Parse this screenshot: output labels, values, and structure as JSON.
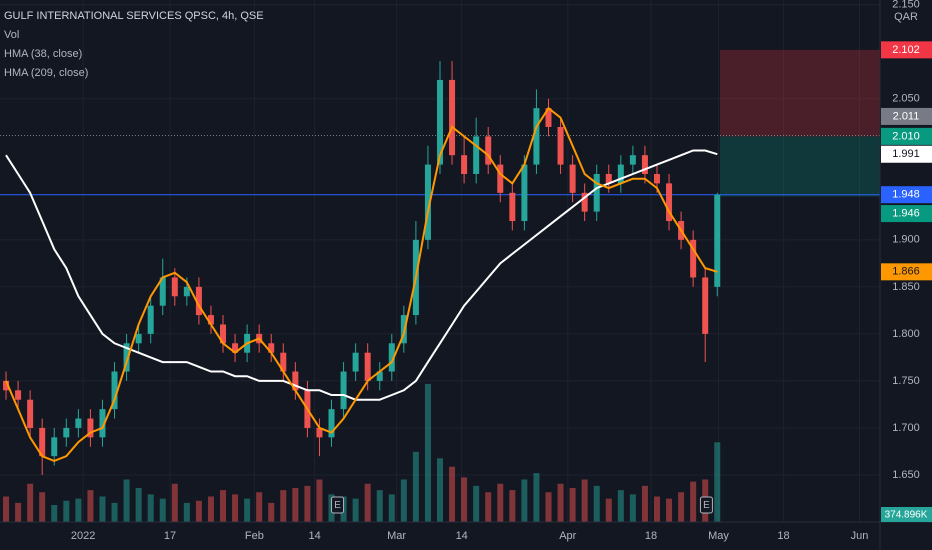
{
  "chart_data": {
    "type": "candlestick",
    "title": "GULF INTERNATIONAL SERVICES QPSC, 4h, QSE",
    "currency": "QAR",
    "grid": true,
    "up_color": "#26a69a",
    "down_color": "#ef5350",
    "xlim": [
      0,
      73
    ],
    "ylim": [
      1.6,
      2.155
    ],
    "vlim": [
      0,
      800
    ],
    "yticks": [
      {
        "value": 2.15,
        "label": "2.150"
      },
      {
        "value": 2.05,
        "label": "2.050"
      },
      {
        "value": 1.9,
        "label": "1.900"
      },
      {
        "value": 1.85,
        "label": "1.850"
      },
      {
        "value": 1.8,
        "label": "1.800"
      },
      {
        "value": 1.75,
        "label": "1.750"
      },
      {
        "value": 1.7,
        "label": "1.700"
      },
      {
        "value": 1.65,
        "label": "1.650"
      }
    ],
    "xticks": [
      {
        "value": 6.9,
        "label": "2022"
      },
      {
        "value": 14.1,
        "label": "17"
      },
      {
        "value": 21.1,
        "label": "Feb"
      },
      {
        "value": 26.1,
        "label": "14"
      },
      {
        "value": 32.9,
        "label": "Mar"
      },
      {
        "value": 38.3,
        "label": "14"
      },
      {
        "value": 47.1,
        "label": "Apr"
      },
      {
        "value": 54.0,
        "label": "18"
      },
      {
        "value": 59.6,
        "label": "May"
      },
      {
        "value": 65.0,
        "label": "18"
      },
      {
        "value": 71.3,
        "label": "Jun"
      }
    ],
    "open": [
      1.75,
      1.74,
      1.73,
      1.7,
      1.67,
      1.69,
      1.7,
      1.71,
      1.69,
      1.72,
      1.76,
      1.79,
      1.8,
      1.83,
      1.86,
      1.84,
      1.85,
      1.82,
      1.81,
      1.79,
      1.78,
      1.8,
      1.79,
      1.78,
      1.76,
      1.74,
      1.7,
      1.69,
      1.72,
      1.76,
      1.78,
      1.75,
      1.76,
      1.79,
      1.82,
      1.9,
      1.98,
      2.07,
      1.99,
      1.97,
      2.01,
      1.98,
      1.95,
      1.92,
      1.98,
      2.04,
      2.02,
      1.98,
      1.95,
      1.93,
      1.97,
      1.96,
      1.98,
      1.99,
      1.97,
      1.96,
      1.92,
      1.9,
      1.86,
      1.85
    ],
    "high": [
      1.76,
      1.75,
      1.74,
      1.71,
      1.7,
      1.71,
      1.72,
      1.72,
      1.73,
      1.77,
      1.8,
      1.81,
      1.84,
      1.88,
      1.87,
      1.86,
      1.86,
      1.83,
      1.82,
      1.8,
      1.81,
      1.81,
      1.8,
      1.79,
      1.77,
      1.75,
      1.71,
      1.73,
      1.77,
      1.79,
      1.79,
      1.77,
      1.8,
      1.83,
      1.92,
      2.0,
      2.09,
      2.09,
      2.01,
      2.03,
      2.02,
      1.99,
      1.96,
      1.99,
      2.06,
      2.05,
      2.03,
      1.99,
      1.96,
      1.98,
      1.98,
      1.99,
      2.0,
      2.0,
      1.98,
      1.97,
      1.93,
      1.91,
      1.87,
      1.95
    ],
    "low": [
      1.73,
      1.72,
      1.69,
      1.65,
      1.66,
      1.68,
      1.69,
      1.68,
      1.68,
      1.71,
      1.75,
      1.78,
      1.79,
      1.82,
      1.83,
      1.83,
      1.81,
      1.8,
      1.78,
      1.77,
      1.77,
      1.78,
      1.77,
      1.75,
      1.73,
      1.69,
      1.67,
      1.68,
      1.71,
      1.75,
      1.74,
      1.74,
      1.75,
      1.78,
      1.81,
      1.89,
      1.97,
      1.98,
      1.96,
      1.96,
      1.97,
      1.94,
      1.91,
      1.91,
      1.97,
      2.01,
      1.97,
      1.94,
      1.92,
      1.92,
      1.95,
      1.95,
      1.97,
      1.96,
      1.95,
      1.91,
      1.89,
      1.85,
      1.77,
      1.84
    ],
    "close": [
      1.74,
      1.73,
      1.7,
      1.67,
      1.69,
      1.7,
      1.71,
      1.69,
      1.72,
      1.76,
      1.79,
      1.8,
      1.83,
      1.86,
      1.84,
      1.85,
      1.82,
      1.81,
      1.79,
      1.78,
      1.8,
      1.79,
      1.78,
      1.76,
      1.74,
      1.7,
      1.69,
      1.72,
      1.76,
      1.78,
      1.75,
      1.76,
      1.79,
      1.82,
      1.9,
      1.98,
      2.07,
      1.99,
      1.97,
      2.01,
      1.98,
      1.95,
      1.92,
      1.98,
      2.04,
      2.02,
      1.98,
      1.95,
      1.93,
      1.97,
      1.96,
      1.98,
      1.99,
      1.97,
      1.96,
      1.92,
      1.9,
      1.86,
      1.8,
      1.948
    ],
    "series": [
      {
        "name": "Vol",
        "values": [
          120,
          90,
          180,
          140,
          80,
          100,
          110,
          150,
          120,
          90,
          200,
          160,
          130,
          110,
          180,
          90,
          100,
          120,
          150,
          130,
          110,
          140,
          90,
          150,
          160,
          170,
          200,
          130,
          120,
          110,
          180,
          150,
          130,
          200,
          330,
          650,
          300,
          260,
          210,
          170,
          140,
          180,
          150,
          200,
          230,
          140,
          180,
          160,
          200,
          170,
          110,
          150,
          130,
          170,
          120,
          110,
          140,
          190,
          200,
          374.896
        ],
        "last_value_label": "374.896K"
      },
      {
        "name": "HMA (38, close)",
        "color": "#ff9800",
        "values": [
          1.75,
          1.72,
          1.69,
          1.67,
          1.665,
          1.67,
          1.685,
          1.695,
          1.7,
          1.73,
          1.77,
          1.81,
          1.84,
          1.86,
          1.865,
          1.855,
          1.83,
          1.81,
          1.79,
          1.78,
          1.79,
          1.795,
          1.78,
          1.76,
          1.74,
          1.72,
          1.7,
          1.695,
          1.71,
          1.73,
          1.75,
          1.76,
          1.77,
          1.8,
          1.86,
          1.93,
          1.99,
          2.02,
          2.01,
          2.0,
          1.99,
          1.97,
          1.96,
          1.98,
          2.02,
          2.04,
          2.03,
          2.0,
          1.97,
          1.96,
          1.955,
          1.96,
          1.965,
          1.965,
          1.955,
          1.93,
          1.91,
          1.89,
          1.87,
          1.866
        ]
      },
      {
        "name": "HMA (209, close)",
        "color": "#ffffff",
        "values": [
          1.99,
          1.97,
          1.95,
          1.92,
          1.89,
          1.87,
          1.84,
          1.82,
          1.8,
          1.79,
          1.785,
          1.78,
          1.775,
          1.77,
          1.77,
          1.77,
          1.765,
          1.76,
          1.76,
          1.755,
          1.755,
          1.75,
          1.75,
          1.75,
          1.745,
          1.74,
          1.74,
          1.735,
          1.735,
          1.73,
          1.73,
          1.73,
          1.735,
          1.74,
          1.75,
          1.77,
          1.79,
          1.81,
          1.83,
          1.845,
          1.86,
          1.875,
          1.885,
          1.895,
          1.905,
          1.915,
          1.925,
          1.935,
          1.945,
          1.955,
          1.96,
          1.965,
          1.97,
          1.975,
          1.98,
          1.985,
          1.99,
          1.995,
          1.995,
          1.991
        ]
      }
    ],
    "events": [
      {
        "x": 28.0,
        "label": "E"
      },
      {
        "x": 58.6,
        "label": "E"
      }
    ],
    "price_labels": [
      {
        "value": 2.102,
        "label": "2.102",
        "color": "#f23645",
        "text_color": "#ffffff"
      },
      {
        "value": 2.011,
        "label": "2.011",
        "color": "#787b86",
        "text_color": "#ffffff"
      },
      {
        "value": 2.01,
        "label": "2.010",
        "color": "#089981",
        "text_color": "#ffffff"
      },
      {
        "value": 1.991,
        "label": "1.991",
        "color": "#ffffff",
        "text_color": "#131722"
      },
      {
        "value": 1.948,
        "label": "1.948",
        "color": "#2962ff",
        "text_color": "#ffffff"
      },
      {
        "value": 1.946,
        "label": "1.946",
        "color": "#089981",
        "text_color": "#ffffff"
      },
      {
        "value": 1.866,
        "label": "1.866",
        "color": "#ff9800",
        "text_color": "#131722"
      }
    ]
  }
}
